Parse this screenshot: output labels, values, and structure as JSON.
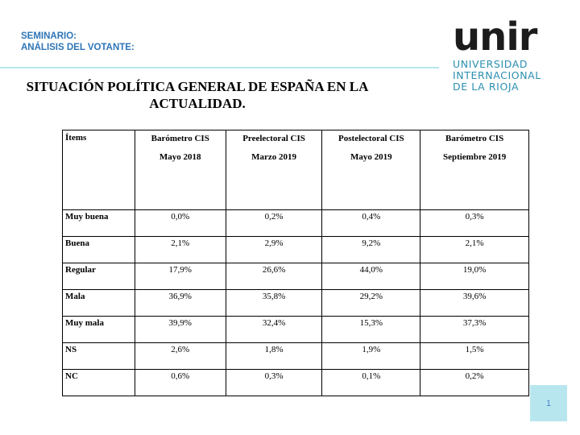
{
  "header": {
    "seminar_line1": "SEMINARIO:",
    "seminar_line2": "ANÁLISIS DEL VOTANTE:"
  },
  "logo": {
    "wordmark": "unir",
    "line1": "UNIVERSIDAD",
    "line2": "INTERNACIONAL",
    "line3": "DE LA RIOJA"
  },
  "slide": {
    "title": "SITUACIÓN POLÍTICA GENERAL DE ESPAÑA EN LA ACTUALIDAD.",
    "page_number": "1"
  },
  "table": {
    "item_header": "Ítems",
    "columns": [
      {
        "line1": "Barómetro CIS",
        "line2": "Mayo 2018"
      },
      {
        "line1": "Preelectoral CIS",
        "line2": "Marzo 2019"
      },
      {
        "line1": "Postelectoral CIS",
        "line2": "Mayo 2019"
      },
      {
        "line1": "Barómetro CIS",
        "line2": "Septiembre 2019"
      }
    ],
    "rows": [
      {
        "label": "Muy buena",
        "values": [
          "0,0%",
          "0,2%",
          "0,4%",
          "0,3%"
        ]
      },
      {
        "label": "Buena",
        "values": [
          "2,1%",
          "2,9%",
          "9,2%",
          "2,1%"
        ]
      },
      {
        "label": "Regular",
        "values": [
          "17,9%",
          "26,6%",
          "44,0%",
          "19,0%"
        ]
      },
      {
        "label": "Mala",
        "values": [
          "36,9%",
          "35,8%",
          "29,2%",
          "39,6%"
        ]
      },
      {
        "label": "Muy mala",
        "values": [
          "39,9%",
          "32,4%",
          "15,3%",
          "37,3%"
        ]
      },
      {
        "label": "NS",
        "values": [
          "2,6%",
          "1,8%",
          "1,9%",
          "1,5%"
        ]
      },
      {
        "label": "NC",
        "values": [
          "0,6%",
          "0,3%",
          "0,1%",
          "0,2%"
        ]
      }
    ]
  },
  "colors": {
    "accent_blue": "#2e75b6",
    "logo_blue": "#2b8fb0",
    "light_cyan": "#b8e6ef"
  }
}
